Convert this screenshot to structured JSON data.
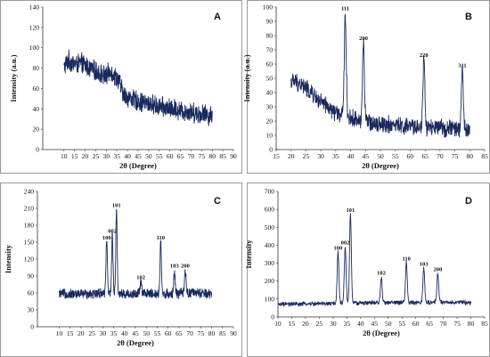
{
  "chart_data": [
    {
      "panel": "A",
      "type": "line",
      "xlabel": "2θ (Degree)",
      "ylabel": "Intensity (a.u.)",
      "xlim": [
        0,
        90
      ],
      "ylim": [
        0,
        140
      ],
      "xticks": [
        10,
        15,
        20,
        25,
        30,
        35,
        40,
        45,
        50,
        55,
        60,
        65,
        70,
        75,
        80,
        85,
        90
      ],
      "yticks": [
        0,
        20,
        40,
        60,
        80,
        100,
        120,
        140
      ],
      "color": "#1a2a5e",
      "series": [
        {
          "x": [
            10,
            12,
            14,
            16,
            18,
            20,
            22,
            24,
            26,
            28,
            30,
            32,
            34,
            36,
            38,
            40,
            42,
            44,
            46,
            48,
            50,
            52,
            54,
            56,
            58,
            60,
            62,
            64,
            66,
            68,
            70,
            72,
            74,
            76,
            78,
            80
          ],
          "y": [
            80,
            88,
            85,
            84,
            85,
            83,
            80,
            78,
            76,
            74,
            72,
            78,
            72,
            68,
            54,
            52,
            50,
            48,
            47,
            46,
            45,
            44,
            43,
            42,
            41,
            40,
            40,
            39,
            38,
            37,
            37,
            36,
            35,
            35,
            34,
            33
          ],
          "noise": 11
        }
      ],
      "peaks": []
    },
    {
      "panel": "B",
      "type": "line",
      "xlabel": "2θ (Degree)",
      "ylabel": "Intensity (a.u.)",
      "xlim": [
        15,
        85
      ],
      "ylim": [
        0,
        100
      ],
      "xticks": [
        15,
        20,
        25,
        30,
        35,
        40,
        45,
        50,
        55,
        60,
        65,
        70,
        75,
        80,
        85
      ],
      "yticks": [
        0,
        10,
        20,
        30,
        40,
        50,
        60,
        70,
        80,
        90,
        100
      ],
      "color": "#1a2a5e",
      "series": [
        {
          "x": [
            20,
            22,
            24,
            26,
            28,
            30,
            32,
            34,
            36,
            38,
            40,
            42,
            44,
            46,
            48,
            50,
            52,
            54,
            56,
            58,
            60,
            62,
            64,
            66,
            68,
            70,
            72,
            74,
            76,
            78,
            80
          ],
          "y": [
            48,
            47,
            45,
            41,
            37,
            33,
            30,
            27,
            25,
            23,
            22,
            21,
            20,
            19,
            19,
            18,
            18,
            17,
            17,
            16,
            16,
            16,
            16,
            15,
            15,
            15,
            15,
            15,
            14,
            14,
            14
          ],
          "noise": 7
        }
      ],
      "peaks": [
        {
          "x": 38.2,
          "y": 96,
          "label": "111"
        },
        {
          "x": 44.3,
          "y": 75,
          "label": "200"
        },
        {
          "x": 64.6,
          "y": 63,
          "label": "220"
        },
        {
          "x": 77.5,
          "y": 56,
          "label": "311"
        }
      ]
    },
    {
      "panel": "C",
      "type": "line",
      "xlabel": "2θ (Degree)",
      "ylabel": "Intensity",
      "xlim": [
        0,
        90
      ],
      "ylim": [
        0,
        240
      ],
      "xticks": [
        10,
        15,
        20,
        25,
        30,
        35,
        40,
        45,
        50,
        55,
        60,
        65,
        70,
        75,
        80,
        85,
        90
      ],
      "yticks": [
        0,
        30,
        60,
        90,
        120,
        150,
        180,
        210,
        240
      ],
      "color": "#1a2a5e",
      "series": [
        {
          "x": [
            10,
            20,
            30,
            40,
            50,
            60,
            70,
            80
          ],
          "y": [
            58,
            58,
            60,
            58,
            59,
            58,
            60,
            58
          ],
          "noise": 10
        }
      ],
      "peaks": [
        {
          "x": 31.8,
          "y": 150,
          "label": "100"
        },
        {
          "x": 34.4,
          "y": 162,
          "label": "002"
        },
        {
          "x": 36.3,
          "y": 208,
          "label": "101"
        },
        {
          "x": 47.5,
          "y": 80,
          "label": "102"
        },
        {
          "x": 56.6,
          "y": 150,
          "label": "110"
        },
        {
          "x": 62.9,
          "y": 100,
          "label": "103"
        },
        {
          "x": 67.9,
          "y": 100,
          "label": "200"
        }
      ]
    },
    {
      "panel": "D",
      "type": "line",
      "xlabel": "2θ (Degree)",
      "ylabel": "Intensity",
      "xlim": [
        10,
        85
      ],
      "ylim": [
        0,
        700
      ],
      "xticks": [
        10,
        15,
        20,
        25,
        30,
        35,
        40,
        45,
        50,
        55,
        60,
        65,
        70,
        75,
        80,
        85
      ],
      "yticks": [
        0,
        100,
        200,
        300,
        400,
        500,
        600,
        700
      ],
      "color": "#1a2a5e",
      "series": [
        {
          "x": [
            10,
            20,
            30,
            40,
            50,
            60,
            70,
            80
          ],
          "y": [
            70,
            72,
            75,
            78,
            80,
            80,
            82,
            80
          ],
          "noise": 14
        }
      ],
      "peaks": [
        {
          "x": 31.8,
          "y": 360,
          "label": "100"
        },
        {
          "x": 34.4,
          "y": 390,
          "label": "002"
        },
        {
          "x": 36.3,
          "y": 570,
          "label": "101"
        },
        {
          "x": 47.5,
          "y": 220,
          "label": "102"
        },
        {
          "x": 56.6,
          "y": 300,
          "label": "110"
        },
        {
          "x": 62.9,
          "y": 270,
          "label": "103"
        },
        {
          "x": 68.0,
          "y": 240,
          "label": "200"
        }
      ]
    }
  ]
}
